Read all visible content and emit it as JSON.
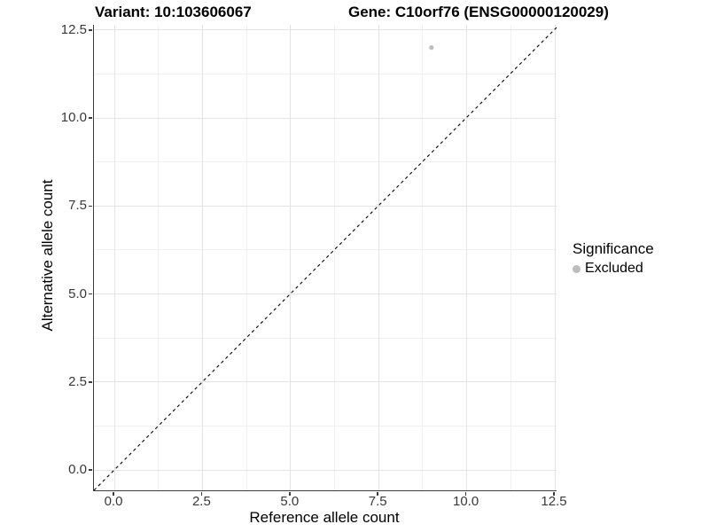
{
  "titles": {
    "variant": "Variant: 10:103606067",
    "gene": "Gene: C10orf76 (ENSG00000120029)"
  },
  "axes": {
    "x": {
      "label": "Reference allele count",
      "tick_labels": [
        "0.0",
        "2.5",
        "5.0",
        "7.5",
        "10.0",
        "12.5"
      ],
      "tick_values": [
        0,
        2.5,
        5,
        7.5,
        10,
        12.5
      ]
    },
    "y": {
      "label": "Alternative allele count",
      "tick_labels": [
        "0.0",
        "2.5",
        "5.0",
        "7.5",
        "10.0",
        "12.5"
      ],
      "tick_values": [
        0,
        2.5,
        5,
        7.5,
        10,
        12.5
      ]
    }
  },
  "legend": {
    "title": "Significance",
    "items": [
      {
        "label": "Excluded",
        "color": "#bdbdbd"
      }
    ]
  },
  "colors": {
    "point": "#bdbdbd",
    "grid_major": "#e3e3e3",
    "grid_minor": "#f0f0f0",
    "axis_line": "#3c3c3c",
    "reference_line": "#000000"
  },
  "chart_data": {
    "type": "scatter",
    "title": "Variant: 10:103606067   Gene: C10orf76 (ENSG00000120029)",
    "xlabel": "Reference allele count",
    "ylabel": "Alternative allele count",
    "xlim": [
      -0.6,
      12.55
    ],
    "ylim": [
      -0.58,
      12.64
    ],
    "x_ticks": [
      0,
      2.5,
      5,
      7.5,
      10,
      12.5
    ],
    "y_ticks": [
      0,
      2.5,
      5,
      7.5,
      10,
      12.5
    ],
    "minor_ticks": [
      1.25,
      3.75,
      6.25,
      8.75,
      11.25
    ],
    "grid": true,
    "legend_position": "right",
    "series": [
      {
        "name": "Excluded",
        "color": "#bdbdbd",
        "points": [
          {
            "x": 9,
            "y": 12
          }
        ]
      }
    ],
    "reference_line": {
      "type": "identity",
      "equation": "y = x",
      "style": "dashed"
    }
  }
}
